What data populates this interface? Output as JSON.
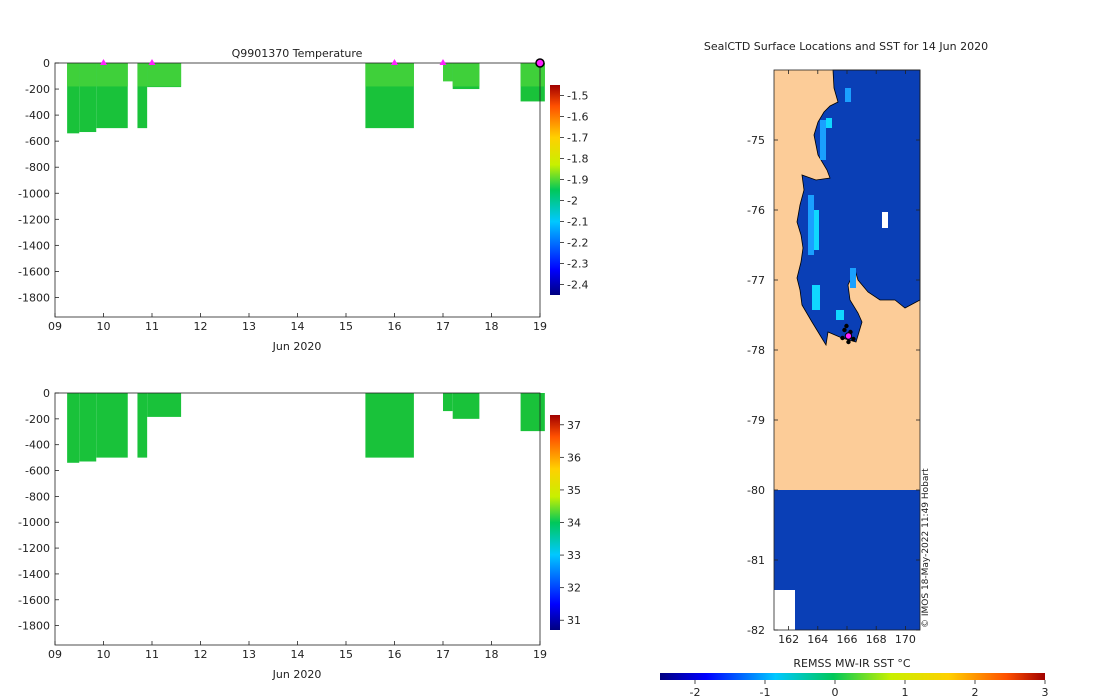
{
  "colors": {
    "green": "#19c23a",
    "green_light": "#3fd03a",
    "green_top": "#58d72e",
    "ice": "#0a3fb6",
    "land": "#fccc98",
    "marker": "#ff22ff"
  },
  "chart_data": [
    {
      "type": "heatmap",
      "title": "Q9901370  Temperature",
      "xlabel": "Jun 2020",
      "ylabel": "",
      "xlim": [
        9,
        19
      ],
      "ylim": [
        -1950,
        0
      ],
      "xticks": [
        "09",
        "10",
        "11",
        "12",
        "13",
        "14",
        "15",
        "16",
        "17",
        "18",
        "19"
      ],
      "yticks": [
        "0",
        "-200",
        "-400",
        "-600",
        "-800",
        "-1000",
        "-1200",
        "-1400",
        "-1600",
        "-1800"
      ],
      "colorbar": {
        "min": -2.45,
        "max": -1.45,
        "ticks": [
          "-1.5",
          "-1.6",
          "-1.7",
          "-1.8",
          "-1.9",
          "-2",
          "-2.1",
          "-2.2",
          "-2.3",
          "-2.4"
        ]
      },
      "profiles": [
        {
          "start": 9.25,
          "end": 9.5,
          "depth": 540
        },
        {
          "start": 9.5,
          "end": 9.85,
          "depth": 530
        },
        {
          "start": 9.85,
          "end": 10.5,
          "depth": 500
        },
        {
          "start": 10.7,
          "end": 10.9,
          "depth": 500
        },
        {
          "start": 10.9,
          "end": 11.6,
          "depth": 185
        },
        {
          "start": 15.4,
          "end": 16.4,
          "depth": 500
        },
        {
          "start": 17.0,
          "end": 17.2,
          "depth": 140
        },
        {
          "start": 17.2,
          "end": 17.75,
          "depth": 200
        },
        {
          "start": 18.6,
          "end": 19.1,
          "depth": 295
        }
      ],
      "markers": [
        10.0,
        11.0,
        16.0,
        17.0,
        19.0
      ]
    },
    {
      "type": "heatmap",
      "title": "",
      "xlabel": "Jun 2020",
      "ylabel": "",
      "xlim": [
        9,
        19
      ],
      "ylim": [
        -1950,
        0
      ],
      "xticks": [
        "09",
        "10",
        "11",
        "12",
        "13",
        "14",
        "15",
        "16",
        "17",
        "18",
        "19"
      ],
      "yticks": [
        "0",
        "-200",
        "-400",
        "-600",
        "-800",
        "-1000",
        "-1200",
        "-1400",
        "-1600",
        "-1800"
      ],
      "colorbar": {
        "min": 30.7,
        "max": 37.3,
        "ticks": [
          "37",
          "36",
          "35",
          "34",
          "33",
          "32",
          "31"
        ]
      },
      "profiles": [
        {
          "start": 9.25,
          "end": 9.5,
          "depth": 540
        },
        {
          "start": 9.5,
          "end": 9.85,
          "depth": 530
        },
        {
          "start": 9.85,
          "end": 10.5,
          "depth": 500
        },
        {
          "start": 10.7,
          "end": 10.9,
          "depth": 500
        },
        {
          "start": 10.9,
          "end": 11.6,
          "depth": 185
        },
        {
          "start": 15.4,
          "end": 16.4,
          "depth": 500
        },
        {
          "start": 17.0,
          "end": 17.2,
          "depth": 140
        },
        {
          "start": 17.2,
          "end": 17.75,
          "depth": 200
        },
        {
          "start": 18.6,
          "end": 19.1,
          "depth": 295
        }
      ]
    },
    {
      "type": "heatmap",
      "title": "SealCTD Surface Locations and SST for 14 Jun 2020",
      "xlabel": "REMSS MW-IR SST °C",
      "xlim": [
        161,
        171
      ],
      "ylim": [
        -82,
        -74
      ],
      "xticks": [
        "162",
        "164",
        "166",
        "168",
        "170"
      ],
      "yticks": [
        "-75",
        "-76",
        "-77",
        "-78",
        "-79",
        "-80",
        "-81",
        "-82"
      ],
      "colorbar": {
        "min": -2.5,
        "max": 3,
        "ticks": [
          "-2",
          "-1",
          "0",
          "1",
          "2",
          "3"
        ]
      },
      "seal_position": {
        "lon": 166.1,
        "lat": -77.8
      },
      "watermark": "© IMOS 18-May-2022 11:49 Hobart"
    }
  ]
}
